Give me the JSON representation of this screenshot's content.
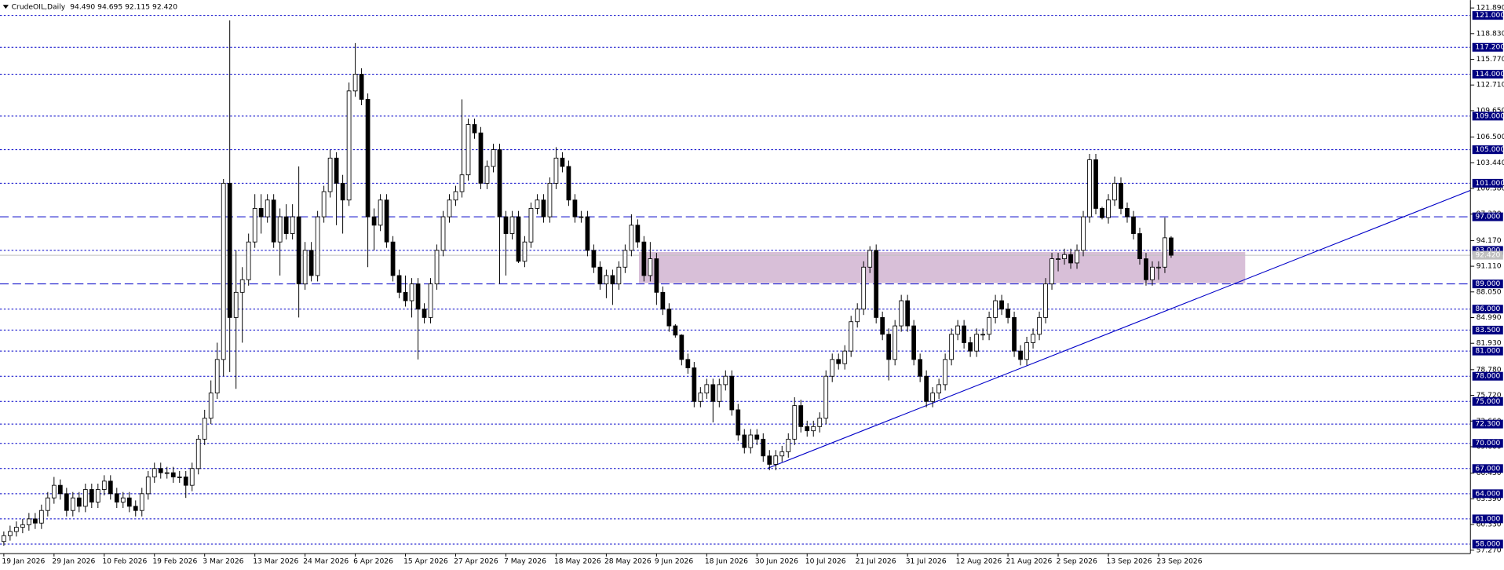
{
  "chart_data": {
    "type": "candlestick",
    "title": "CrudeOIL,Daily",
    "header_values": "94.490 94.695 92.115 92.420",
    "xlim": [
      -0.61,
      233.69
    ],
    "ylim": [
      56.86,
      122.83
    ],
    "categories": [
      "19 Jan 2026",
      null,
      null,
      null,
      null,
      null,
      null,
      null,
      "29 Jan 2026",
      null,
      null,
      null,
      null,
      null,
      null,
      null,
      "10 Feb 2026",
      null,
      null,
      null,
      null,
      null,
      null,
      null,
      "19 Feb 2026",
      null,
      null,
      null,
      null,
      null,
      null,
      null,
      "3 Mar 2026",
      null,
      null,
      null,
      null,
      null,
      null,
      null,
      "13 Mar 2026",
      null,
      null,
      null,
      null,
      null,
      null,
      null,
      "24 Mar 2026",
      null,
      null,
      null,
      null,
      null,
      null,
      null,
      "6 Apr 2026",
      null,
      null,
      null,
      null,
      null,
      null,
      null,
      "15 Apr 2026",
      null,
      null,
      null,
      null,
      null,
      null,
      null,
      "27 Apr 2026",
      null,
      null,
      null,
      null,
      null,
      null,
      null,
      "7 May 2026",
      null,
      null,
      null,
      null,
      null,
      null,
      null,
      "18 May 2026",
      null,
      null,
      null,
      null,
      null,
      null,
      null,
      "28 May 2026",
      null,
      null,
      null,
      null,
      null,
      null,
      null,
      "9 Jun 2026",
      null,
      null,
      null,
      null,
      null,
      null,
      null,
      "18 Jun 2026",
      null,
      null,
      null,
      null,
      null,
      null,
      null,
      "30 Jun 2026",
      null,
      null,
      null,
      null,
      null,
      null,
      null,
      "10 Jul 2026",
      null,
      null,
      null,
      null,
      null,
      null,
      null,
      "21 Jul 2026",
      null,
      null,
      null,
      null,
      null,
      null,
      null,
      "31 Jul 2026",
      null,
      null,
      null,
      null,
      null,
      null,
      null,
      "12 Aug 2026",
      null,
      null,
      null,
      null,
      null,
      null,
      null,
      "21 Aug 2026",
      null,
      null,
      null,
      null,
      null,
      null,
      null,
      "2 Sep 2026",
      null,
      null,
      null,
      null,
      null,
      null,
      null,
      "13 Sep 2026",
      null,
      null,
      null,
      null,
      null,
      null,
      null,
      "23 Sep 2026",
      null,
      null
    ],
    "candles": [
      [
        58.3,
        59.5,
        57.8,
        59
      ],
      [
        59,
        60.2,
        58.4,
        59.5
      ],
      [
        59.5,
        60.7,
        58.9,
        60
      ],
      [
        60,
        61,
        59.3,
        60.3
      ],
      [
        60.3,
        61.7,
        59.6,
        61
      ],
      [
        61,
        61.7,
        59.8,
        60.5
      ],
      [
        60.5,
        62.7,
        59.8,
        62
      ],
      [
        62,
        64.2,
        61.3,
        63.5
      ],
      [
        63.5,
        66,
        62.8,
        65
      ],
      [
        65,
        65.7,
        63.3,
        64
      ],
      [
        64,
        64.7,
        61.3,
        62
      ],
      [
        62,
        64.2,
        61.3,
        63.5
      ],
      [
        63.5,
        64.2,
        61.8,
        62.5
      ],
      [
        62.5,
        65.2,
        61.8,
        64.5
      ],
      [
        64.5,
        65.2,
        62.3,
        63
      ],
      [
        63,
        65.2,
        62.3,
        64.5
      ],
      [
        64.5,
        66.2,
        63.8,
        65.5
      ],
      [
        65.5,
        66.2,
        63.3,
        64
      ],
      [
        64,
        64.7,
        62.3,
        63
      ],
      [
        63,
        64.2,
        62.3,
        63.5
      ],
      [
        63.5,
        64.2,
        61.8,
        62.5
      ],
      [
        62.5,
        63.2,
        61.3,
        62
      ],
      [
        62,
        64.7,
        61.3,
        64
      ],
      [
        64,
        66.7,
        63.3,
        66
      ],
      [
        66,
        67.7,
        65.3,
        67
      ],
      [
        67,
        67.7,
        65.8,
        66.5
      ],
      [
        66.5,
        67.2,
        65.8,
        66.5
      ],
      [
        66.5,
        67.2,
        65.3,
        66
      ],
      [
        66,
        66.7,
        65.3,
        66
      ],
      [
        66,
        66.7,
        63.5,
        65
      ],
      [
        65,
        67.7,
        64.3,
        67
      ],
      [
        67,
        71,
        66.3,
        70.5
      ],
      [
        70.5,
        74,
        69.8,
        73
      ],
      [
        73,
        77.5,
        72.3,
        76
      ],
      [
        76,
        82,
        75.3,
        80
      ],
      [
        80,
        101.5,
        78,
        101
      ],
      [
        101,
        120.4,
        78.5,
        85
      ],
      [
        85,
        93,
        76.5,
        88
      ],
      [
        88,
        91,
        82,
        89.5
      ],
      [
        89.5,
        95,
        88.8,
        94
      ],
      [
        94,
        99.7,
        93.3,
        98
      ],
      [
        98,
        99.7,
        95,
        97
      ],
      [
        97,
        99.7,
        96.3,
        99
      ],
      [
        99,
        99.7,
        93.3,
        94
      ],
      [
        94,
        98,
        90,
        97
      ],
      [
        97,
        98.5,
        94.3,
        95
      ],
      [
        95,
        98.5,
        94.3,
        97
      ],
      [
        97,
        103,
        85,
        89
      ],
      [
        89,
        94,
        88.3,
        93
      ],
      [
        93,
        94,
        89.3,
        90
      ],
      [
        90,
        97.7,
        89.3,
        97
      ],
      [
        97,
        100.7,
        96.3,
        100
      ],
      [
        100,
        105,
        99.3,
        104
      ],
      [
        104,
        104.7,
        96,
        101
      ],
      [
        101,
        102,
        95,
        99
      ],
      [
        99,
        113,
        98.3,
        112
      ],
      [
        112,
        117.7,
        111.3,
        114
      ],
      [
        114,
        114.7,
        110.3,
        111
      ],
      [
        111,
        111.7,
        91,
        97
      ],
      [
        97,
        98,
        93,
        96
      ],
      [
        96,
        99.7,
        95.3,
        99
      ],
      [
        99,
        99.7,
        93.3,
        94
      ],
      [
        94,
        94.7,
        89.3,
        90
      ],
      [
        90,
        90.7,
        87.3,
        88
      ],
      [
        88,
        90,
        86.3,
        87
      ],
      [
        87,
        89.7,
        85,
        89
      ],
      [
        89,
        89.7,
        80,
        86
      ],
      [
        86,
        86.7,
        84.3,
        85
      ],
      [
        85,
        89.7,
        84.3,
        89
      ],
      [
        89,
        93.7,
        88.3,
        93
      ],
      [
        93,
        97.7,
        92.3,
        97
      ],
      [
        97,
        99.7,
        96.3,
        99
      ],
      [
        99,
        100.7,
        98.3,
        100
      ],
      [
        100,
        111,
        99.3,
        102
      ],
      [
        102,
        108.7,
        101.3,
        108
      ],
      [
        108,
        108.7,
        106.3,
        107
      ],
      [
        107,
        107.7,
        100.3,
        101
      ],
      [
        101,
        103.7,
        100.3,
        103
      ],
      [
        103,
        105.7,
        102.3,
        105
      ],
      [
        105,
        105.7,
        89,
        97
      ],
      [
        97,
        97.7,
        90,
        95
      ],
      [
        95,
        97.7,
        94.3,
        97
      ],
      [
        97,
        97.7,
        91.5,
        91.7
      ],
      [
        91.7,
        94.7,
        91,
        94
      ],
      [
        94,
        98.7,
        93.3,
        98
      ],
      [
        98,
        99.7,
        97.3,
        99
      ],
      [
        99,
        99.7,
        96.3,
        97
      ],
      [
        97,
        101.7,
        96.3,
        101
      ],
      [
        101,
        105.3,
        100.3,
        104
      ],
      [
        104,
        104.7,
        102.3,
        103
      ],
      [
        103,
        103.7,
        98.3,
        99
      ],
      [
        99,
        99.7,
        96.3,
        97
      ],
      [
        97,
        97.7,
        96.3,
        97
      ],
      [
        97,
        97.7,
        92.3,
        93
      ],
      [
        93,
        93.7,
        90.3,
        91
      ],
      [
        91,
        91.7,
        88.3,
        89
      ],
      [
        89,
        90.7,
        87.3,
        90
      ],
      [
        90,
        90.7,
        86.5,
        89
      ],
      [
        89,
        91.7,
        88.3,
        91
      ],
      [
        91,
        93.7,
        90.3,
        93
      ],
      [
        93,
        97.3,
        92.3,
        96
      ],
      [
        96,
        96.7,
        93.3,
        94
      ],
      [
        94,
        94.7,
        89.3,
        90
      ],
      [
        90,
        94,
        89.3,
        92
      ],
      [
        92,
        92.7,
        86.5,
        88
      ],
      [
        88,
        88.7,
        85.3,
        86
      ],
      [
        86,
        86.7,
        83.3,
        84
      ],
      [
        84,
        84.2,
        82.6,
        82.9
      ],
      [
        82.9,
        83,
        79.3,
        80
      ],
      [
        80,
        80.7,
        78.3,
        79
      ],
      [
        79,
        79.7,
        74.3,
        75
      ],
      [
        75,
        76.7,
        74.3,
        76
      ],
      [
        76,
        77.7,
        75.3,
        77
      ],
      [
        77,
        77.7,
        72.5,
        75
      ],
      [
        75,
        77.7,
        74.3,
        77
      ],
      [
        77,
        78.7,
        76.3,
        78
      ],
      [
        78,
        78.7,
        73.3,
        74
      ],
      [
        74,
        74.7,
        70.3,
        71
      ],
      [
        71,
        71.7,
        68.8,
        69.5
      ],
      [
        69.5,
        71.7,
        68.8,
        71
      ],
      [
        71,
        71.7,
        69.8,
        70.5
      ],
      [
        70.5,
        71.2,
        67.8,
        68.5
      ],
      [
        68.5,
        69.2,
        66.8,
        67.5
      ],
      [
        67.5,
        69.2,
        66.8,
        68.5
      ],
      [
        68.5,
        69.7,
        67.8,
        69
      ],
      [
        69,
        71.2,
        68.3,
        70.5
      ],
      [
        70.5,
        75.5,
        69.8,
        74.5
      ],
      [
        74.5,
        75.2,
        71.3,
        72
      ],
      [
        72,
        72.7,
        70.8,
        71.5
      ],
      [
        71.5,
        72.7,
        70.8,
        72
      ],
      [
        72,
        73.7,
        71.3,
        73
      ],
      [
        73,
        78.7,
        72.3,
        78
      ],
      [
        78,
        80.7,
        77.3,
        80
      ],
      [
        80,
        80.7,
        78.8,
        79.5
      ],
      [
        79.5,
        81.7,
        78.8,
        81
      ],
      [
        81,
        85.2,
        80.3,
        84.5
      ],
      [
        84.5,
        86.7,
        83.8,
        86
      ],
      [
        86,
        91.7,
        85.3,
        91
      ],
      [
        91,
        93.5,
        90.3,
        93
      ],
      [
        93,
        93.7,
        84.3,
        85
      ],
      [
        85,
        85.7,
        82.3,
        83
      ],
      [
        83,
        83.7,
        77.5,
        80
      ],
      [
        80,
        84.7,
        79.3,
        84
      ],
      [
        84,
        87.7,
        83.3,
        87
      ],
      [
        87,
        87.7,
        83.3,
        84
      ],
      [
        84,
        84.7,
        79.3,
        80
      ],
      [
        80,
        80.7,
        77.3,
        78
      ],
      [
        78,
        78.7,
        74.3,
        75
      ],
      [
        75,
        76.7,
        74.3,
        76
      ],
      [
        76,
        77.7,
        75.3,
        77
      ],
      [
        77,
        80.7,
        76.3,
        80
      ],
      [
        80,
        83.7,
        79.3,
        83
      ],
      [
        83,
        84.7,
        82.3,
        84
      ],
      [
        84,
        84.7,
        81.3,
        82
      ],
      [
        82,
        82.7,
        80.3,
        81
      ],
      [
        81,
        83.7,
        80.3,
        83
      ],
      [
        83,
        83.7,
        82.3,
        83
      ],
      [
        83,
        85.7,
        82.3,
        85
      ],
      [
        85,
        87.7,
        84.3,
        87
      ],
      [
        87,
        87.7,
        85.3,
        86
      ],
      [
        86,
        86.7,
        84.3,
        85
      ],
      [
        85,
        85.7,
        80.3,
        81
      ],
      [
        81,
        81.7,
        79.3,
        80
      ],
      [
        80,
        82.7,
        79.3,
        82
      ],
      [
        82,
        83.7,
        81.3,
        83
      ],
      [
        83,
        85.7,
        82.3,
        85
      ],
      [
        85,
        89.7,
        84.3,
        89
      ],
      [
        89,
        92.7,
        88.3,
        92
      ],
      [
        92,
        92.7,
        90.5,
        92
      ],
      [
        92,
        93.2,
        91.3,
        92.5
      ],
      [
        92.5,
        93.2,
        90.8,
        91.5
      ],
      [
        91.5,
        93.7,
        90.8,
        93
      ],
      [
        93,
        97.7,
        92.3,
        97
      ],
      [
        97,
        104.5,
        96.3,
        103.8
      ],
      [
        103.8,
        104.5,
        97.3,
        98
      ],
      [
        98,
        98.2,
        96.7,
        96.9
      ],
      [
        96.9,
        99.7,
        96.2,
        99
      ],
      [
        99,
        101.8,
        98.3,
        101
      ],
      [
        101,
        101.7,
        97.3,
        98
      ],
      [
        98,
        98.7,
        96.3,
        97
      ],
      [
        97,
        97.7,
        94.3,
        95
      ],
      [
        95,
        95.7,
        91.3,
        92
      ],
      [
        92,
        92.7,
        88.8,
        89.5
      ],
      [
        89.5,
        91.7,
        88.8,
        91
      ],
      [
        91,
        91.7,
        89.5,
        91
      ],
      [
        91,
        96.9,
        90.3,
        94.5
      ],
      [
        94.49,
        94.695,
        92.115,
        92.42
      ]
    ],
    "yticks": [
      {
        "value": 121.89,
        "label": "121.890"
      },
      {
        "value": 118.83,
        "label": "118.830"
      },
      {
        "value": 115.77,
        "label": "115.770"
      },
      {
        "value": 112.71,
        "label": "112.710"
      },
      {
        "value": 109.65,
        "label": "109.650"
      },
      {
        "value": 106.5,
        "label": "106.500"
      },
      {
        "value": 103.44,
        "label": "103.440"
      },
      {
        "value": 100.38,
        "label": "100.380"
      },
      {
        "value": 97.32,
        "label": "97.320"
      },
      {
        "value": 94.17,
        "label": "94.170"
      },
      {
        "value": 91.11,
        "label": "91.110"
      },
      {
        "value": 88.05,
        "label": "88.050"
      },
      {
        "value": 84.99,
        "label": "84.990"
      },
      {
        "value": 81.93,
        "label": "81.930"
      },
      {
        "value": 78.78,
        "label": "78.780"
      },
      {
        "value": 75.72,
        "label": "75.720"
      },
      {
        "value": 72.66,
        "label": "72.660"
      },
      {
        "value": 69.6,
        "label": "69.600"
      },
      {
        "value": 66.45,
        "label": "66.450"
      },
      {
        "value": 63.39,
        "label": "63.390"
      },
      {
        "value": 60.33,
        "label": "60.330"
      },
      {
        "value": 57.27,
        "label": "57.270"
      }
    ],
    "levels": [
      {
        "value": 121,
        "label": "121.000"
      },
      {
        "value": 117.2,
        "label": "117.200"
      },
      {
        "value": 114,
        "label": "114.000"
      },
      {
        "value": 109,
        "label": "109.000"
      },
      {
        "value": 105,
        "label": "105.000"
      },
      {
        "value": 101,
        "label": "101.000"
      },
      {
        "value": 97,
        "label": "97.000",
        "long_dash": true
      },
      {
        "value": 93,
        "label": "93.000"
      },
      {
        "value": 89,
        "label": "89.000",
        "long_dash": true
      },
      {
        "value": 86,
        "label": "86.000"
      },
      {
        "value": 83.5,
        "label": "83.500"
      },
      {
        "value": 81,
        "label": "81.000"
      },
      {
        "value": 78,
        "label": "78.000"
      },
      {
        "value": 75,
        "label": "75.000"
      },
      {
        "value": 72.3,
        "label": "72.300"
      },
      {
        "value": 70,
        "label": "70.000"
      },
      {
        "value": 67,
        "label": "67.000"
      },
      {
        "value": 64,
        "label": "64.000"
      },
      {
        "value": 61,
        "label": "61.000"
      },
      {
        "value": 58,
        "label": "58.000"
      }
    ],
    "level_color": "#0000c8",
    "current_price": {
      "value": 92.42,
      "label": "92.420"
    },
    "zone": {
      "start": 101.2,
      "end": 197.8,
      "top": 92.8,
      "bottom": 89.1,
      "color": "#d8bfd8"
    },
    "trendline": {
      "x": [
        121.7,
        234.2
      ],
      "y": [
        67.03,
        100.3
      ],
      "color": "#0000c8"
    },
    "bull_color": "#ffffff",
    "bear_color": "#000000"
  }
}
